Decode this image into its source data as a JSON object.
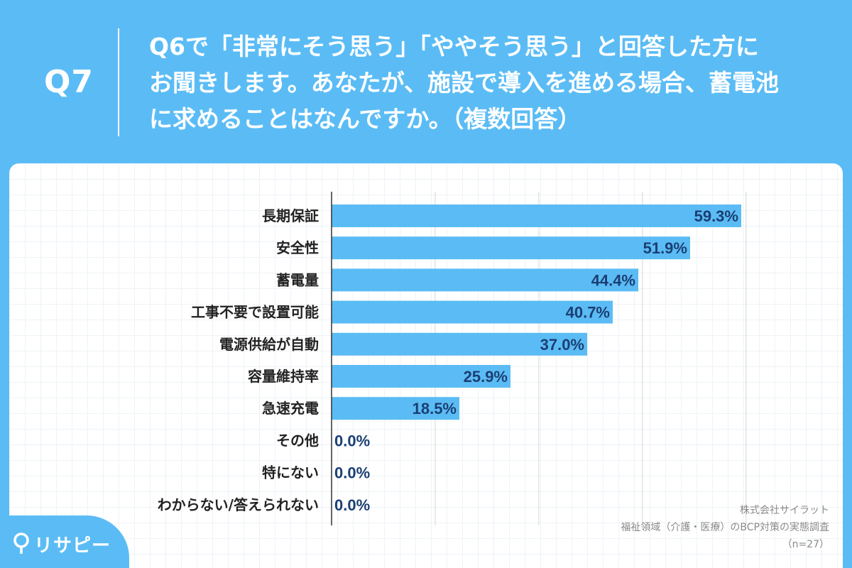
{
  "header": {
    "question_number": "Q7",
    "question_text": "Q6で「非常にそう思う」「ややそう思う」と回答した方に\nお聞きします。あなたが、施設で導入を進める場合、蓄電池\nに求めることはなんですか。（複数回答）"
  },
  "source": {
    "company": "株式会社サイラット",
    "survey": "福祉領域（介護・医療）のBCP対策の実態調査",
    "sample": "（n=27）"
  },
  "logo": {
    "text": "リサピー",
    "icon": "map-pin-icon"
  },
  "colors": {
    "background": "#5bbcf5",
    "bar": "#5bbcf5",
    "value_text": "#1b3f73"
  },
  "chart_data": {
    "type": "bar",
    "orientation": "horizontal",
    "title": "",
    "xlabel": "",
    "ylabel": "",
    "xlim": [
      0,
      100
    ],
    "grid": true,
    "categories": [
      "長期保証",
      "安全性",
      "蓄電量",
      "工事不要で設置可能",
      "電源供給が自動",
      "容量維持率",
      "急速充電",
      "その他",
      "特にない",
      "わからない/答えられない"
    ],
    "values": [
      59.3,
      51.9,
      44.4,
      40.7,
      37.0,
      25.9,
      18.5,
      0.0,
      0.0,
      0.0
    ],
    "value_labels": [
      "59.3%",
      "51.9%",
      "44.4%",
      "40.7%",
      "37.0%",
      "25.9%",
      "18.5%",
      "0.0%",
      "0.0%",
      "0.0%"
    ]
  }
}
